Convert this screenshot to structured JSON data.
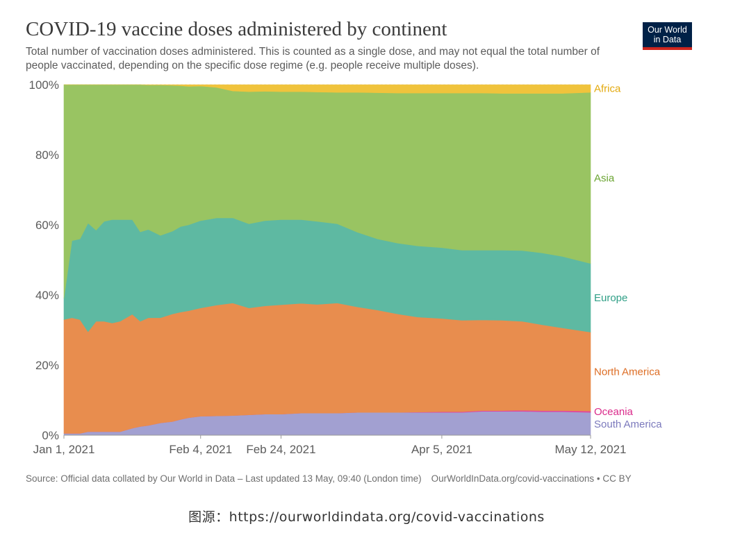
{
  "header": {
    "title": "COVID-19 vaccine doses administered by continent",
    "subtitle": "Total number of vaccination doses administered. This is counted as a single dose, and may not equal the total number of people vaccinated, depending on the specific dose regime (e.g. people receive multiple doses).",
    "logo_line1": "Our World",
    "logo_line2": "in Data",
    "logo_bg": "#002147",
    "logo_accent": "#ce261e"
  },
  "footer": {
    "source": "Source: Official data collated by Our World in Data – Last updated 13 May, 09:40 (London time)",
    "link": "OurWorldInData.org/covid-vaccinations • CC BY",
    "caption": "图源：https://ourworldindata.org/covid-vaccinations"
  },
  "chart_data": {
    "type": "area",
    "stacking": "percent",
    "title": "COVID-19 vaccine doses administered by continent",
    "xlabel": "",
    "ylabel": "",
    "ylim": [
      0,
      100
    ],
    "y_ticks": [
      "0%",
      "20%",
      "40%",
      "60%",
      "80%",
      "100%"
    ],
    "x_ticks": [
      "Jan 1, 2021",
      "Feb 4, 2021",
      "Feb 24, 2021",
      "Apr 5, 2021",
      "May 12, 2021"
    ],
    "x_range": [
      "2021-01-01",
      "2021-05-12"
    ],
    "grid": "horizontal dashed",
    "legend": "labels at right end of areas",
    "x": [
      "2021-01-01",
      "2021-01-03",
      "2021-01-05",
      "2021-01-07",
      "2021-01-09",
      "2021-01-11",
      "2021-01-13",
      "2021-01-15",
      "2021-01-18",
      "2021-01-20",
      "2021-01-22",
      "2021-01-25",
      "2021-01-28",
      "2021-01-30",
      "2021-02-01",
      "2021-02-04",
      "2021-02-08",
      "2021-02-12",
      "2021-02-16",
      "2021-02-20",
      "2021-02-24",
      "2021-03-01",
      "2021-03-05",
      "2021-03-10",
      "2021-03-15",
      "2021-03-20",
      "2021-03-25",
      "2021-03-30",
      "2021-04-05",
      "2021-04-10",
      "2021-04-15",
      "2021-04-20",
      "2021-04-25",
      "2021-04-30",
      "2021-05-05",
      "2021-05-12"
    ],
    "series": [
      {
        "name": "South America",
        "color": "#a2a0d1",
        "values": [
          0.5,
          0.5,
          0.5,
          1,
          1,
          1,
          1,
          1,
          2,
          2.5,
          2.8,
          3.5,
          3.9,
          4.5,
          5,
          5.4,
          5.5,
          5.6,
          5.8,
          6,
          6,
          6.3,
          6.3,
          6.3,
          6.5,
          6.5,
          6.5,
          6.5,
          6.5,
          6.5,
          6.8,
          6.8,
          6.8,
          6.7,
          6.7,
          6.5
        ]
      },
      {
        "name": "Oceania",
        "color": "#e0499b",
        "values": [
          0,
          0,
          0,
          0,
          0,
          0,
          0,
          0,
          0,
          0,
          0,
          0,
          0,
          0,
          0,
          0,
          0,
          0,
          0,
          0,
          0,
          0,
          0,
          0,
          0,
          0,
          0,
          0.1,
          0.2,
          0.2,
          0.2,
          0.2,
          0.3,
          0.3,
          0.3,
          0.4
        ]
      },
      {
        "name": "North America",
        "color": "#e88d4e",
        "values": [
          32.5,
          33,
          32.5,
          28.5,
          31.5,
          31.5,
          31,
          31.5,
          32.5,
          30,
          30.7,
          30,
          30.7,
          30.6,
          30.5,
          30.9,
          31.6,
          32.1,
          30.5,
          30.9,
          31.2,
          31.3,
          31,
          31.4,
          30.1,
          29.2,
          28.1,
          27.1,
          26.6,
          26.1,
          25.9,
          25.8,
          25.4,
          24.5,
          23.6,
          22.5
        ]
      },
      {
        "name": "Europe",
        "color": "#5eb9a2",
        "values": [
          6,
          22,
          23,
          31,
          26,
          28.5,
          29.5,
          29,
          27,
          25.5,
          25.2,
          23.5,
          23.6,
          24.4,
          24.5,
          24.9,
          24.9,
          24.3,
          24,
          24.3,
          24.3,
          23.9,
          23.7,
          22.6,
          21.3,
          20.3,
          20.2,
          20.3,
          20.2,
          20,
          19.9,
          20,
          20.2,
          20.5,
          20.4,
          19.6
        ]
      },
      {
        "name": "Asia",
        "color": "#99c462",
        "values": [
          61,
          44.5,
          44,
          39.5,
          41.5,
          39,
          38.5,
          38.5,
          38.5,
          42,
          41.2,
          42.9,
          41.6,
          40.2,
          39.5,
          38.4,
          37.2,
          36.2,
          37.7,
          36.9,
          36.5,
          36.5,
          36.9,
          37.5,
          39.9,
          41.7,
          42.8,
          43.6,
          44.1,
          44.8,
          44.8,
          44.7,
          44.8,
          45.5,
          46.5,
          48.8
        ]
      },
      {
        "name": "Africa",
        "color": "#f0c33c",
        "values": [
          0,
          0,
          0,
          0,
          0,
          0,
          0,
          0,
          0,
          0,
          0.1,
          0.1,
          0.2,
          0.3,
          0.5,
          0.4,
          0.8,
          1.8,
          2,
          1.9,
          2,
          2,
          2.1,
          2.2,
          2.2,
          2.3,
          2.4,
          2.4,
          2.4,
          2.4,
          2.4,
          2.5,
          2.5,
          2.5,
          2.5,
          2.2
        ]
      }
    ],
    "label_colors": {
      "Africa": "#e3a90d",
      "Asia": "#6aa431",
      "Europe": "#2f9f86",
      "North America": "#dd6d24",
      "Oceania": "#da2a8a",
      "South America": "#7b79bc"
    }
  }
}
